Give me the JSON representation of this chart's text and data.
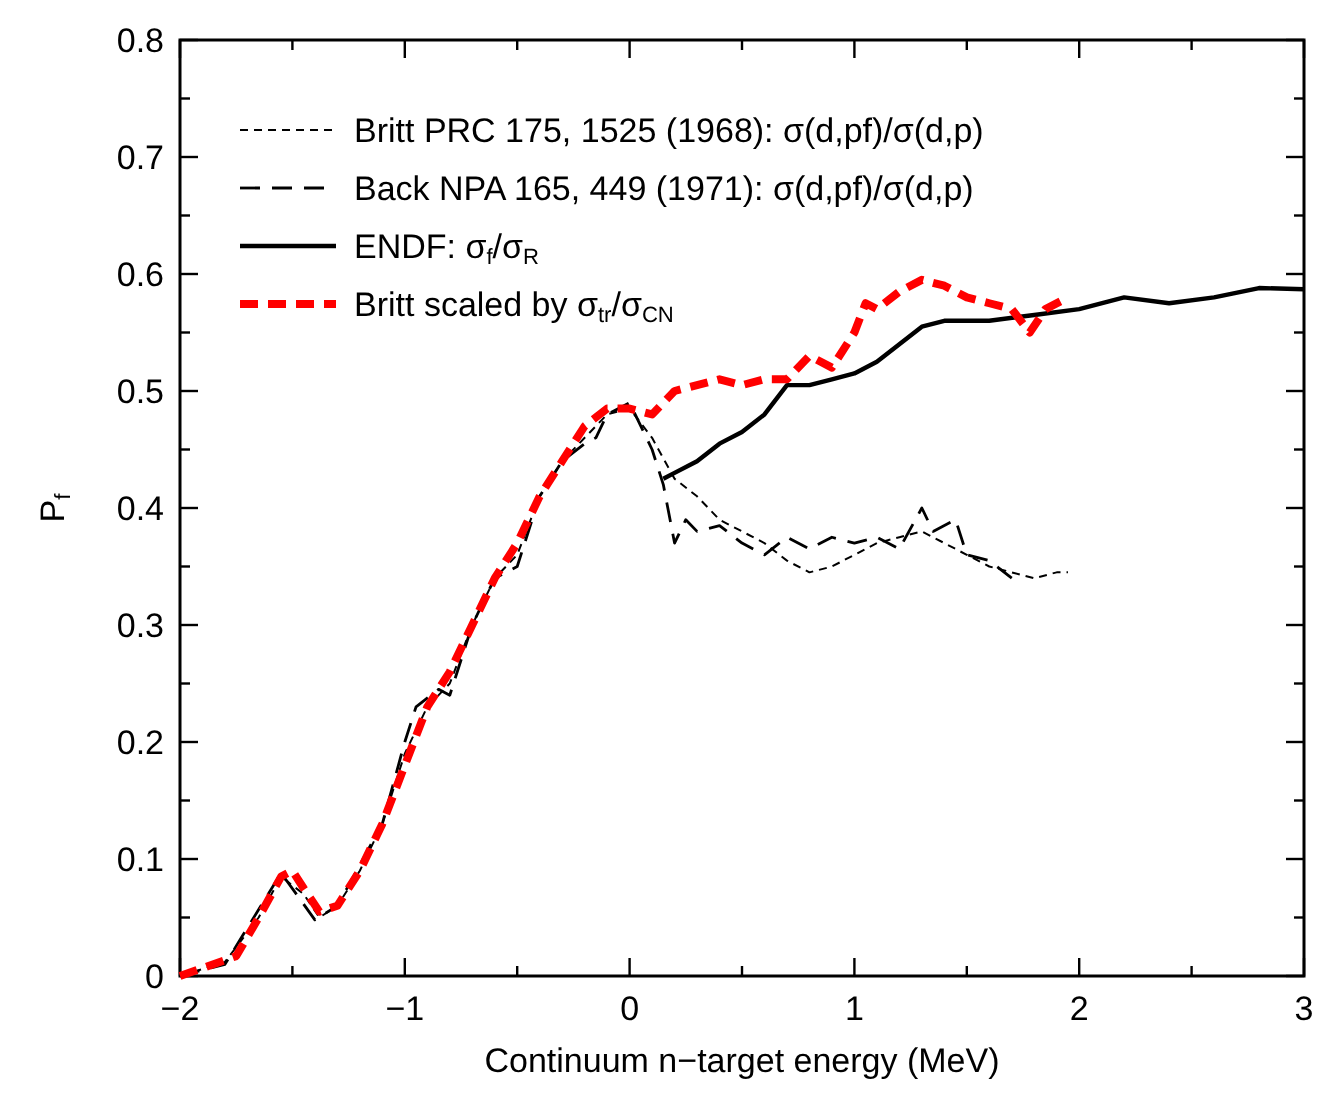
{
  "chart_data": {
    "type": "line",
    "xlabel": "Continuum n−target energy (MeV)",
    "ylabel": "P$_{f}$",
    "xlim": [
      -2,
      3
    ],
    "ylim": [
      0,
      0.8
    ],
    "xticks": [
      {
        "value": -2,
        "label": "−2"
      },
      {
        "value": -1.5,
        "label": null
      },
      {
        "value": -1,
        "label": "−1"
      },
      {
        "value": -0.5,
        "label": null
      },
      0,
      {
        "value": 0.5,
        "label": null
      },
      1,
      {
        "value": 1.5,
        "label": null
      },
      2,
      {
        "value": 2.5,
        "label": null
      },
      3
    ],
    "yticks": [
      0,
      {
        "value": 0.05,
        "label": null
      },
      0.1,
      {
        "value": 0.15,
        "label": null
      },
      0.2,
      {
        "value": 0.25,
        "label": null
      },
      0.3,
      {
        "value": 0.35,
        "label": null
      },
      0.4,
      {
        "value": 0.45,
        "label": null
      },
      0.5,
      {
        "value": 0.55,
        "label": null
      },
      0.6,
      {
        "value": 0.65,
        "label": null
      },
      0.7,
      {
        "value": 0.75,
        "label": null
      },
      0.8
    ],
    "legend": "top left",
    "grid": false,
    "marker": "none",
    "series": [
      {
        "name": "Britt PRC 175, 1525 (1968): σ(d,pf)/σ(d,p)",
        "color": "#000000",
        "line_style": "dotted",
        "x": [
          -2,
          -1.8,
          -1.65,
          -1.55,
          -1.45,
          -1.38,
          -1.3,
          -1.2,
          -1.1,
          -1.0,
          -0.9,
          -0.8,
          -0.7,
          -0.6,
          -0.5,
          -0.4,
          -0.3,
          -0.2,
          -0.1,
          0,
          0.1,
          0.2,
          0.3,
          0.4,
          0.5,
          0.6,
          0.7,
          0.8,
          0.9,
          1.0,
          1.1,
          1.2,
          1.3,
          1.4,
          1.5,
          1.6,
          1.7,
          1.8,
          1.9,
          1.95
        ],
        "values": [
          0,
          0.012,
          0.05,
          0.085,
          0.07,
          0.05,
          0.06,
          0.09,
          0.13,
          0.19,
          0.23,
          0.25,
          0.3,
          0.34,
          0.36,
          0.41,
          0.44,
          0.46,
          0.48,
          0.485,
          0.46,
          0.425,
          0.41,
          0.39,
          0.38,
          0.37,
          0.355,
          0.345,
          0.35,
          0.36,
          0.37,
          0.375,
          0.38,
          0.37,
          0.36,
          0.35,
          0.345,
          0.34,
          0.345,
          0.345
        ]
      },
      {
        "name": "Back  NPA 165, 449 (1971): σ(d,pf)/σ(d,p)",
        "color": "#000000",
        "line_style": "dashed",
        "x": [
          -2,
          -1.8,
          -1.55,
          -1.4,
          -1.3,
          -1.1,
          -1.0,
          -0.95,
          -0.85,
          -0.8,
          -0.7,
          -0.6,
          -0.5,
          -0.4,
          -0.3,
          -0.2,
          -0.15,
          -0.1,
          0,
          0.1,
          0.15,
          0.2,
          0.25,
          0.3,
          0.4,
          0.5,
          0.6,
          0.7,
          0.8,
          0.9,
          1.0,
          1.1,
          1.2,
          1.3,
          1.35,
          1.45,
          1.5,
          1.6,
          1.7
        ],
        "values": [
          0,
          0.01,
          0.088,
          0.048,
          0.06,
          0.13,
          0.2,
          0.23,
          0.245,
          0.24,
          0.3,
          0.34,
          0.35,
          0.41,
          0.44,
          0.455,
          0.46,
          0.48,
          0.49,
          0.45,
          0.42,
          0.37,
          0.39,
          0.38,
          0.385,
          0.37,
          0.36,
          0.375,
          0.365,
          0.375,
          0.37,
          0.375,
          0.365,
          0.4,
          0.38,
          0.39,
          0.36,
          0.355,
          0.34
        ]
      },
      {
        "name": "ENDF:  σ$_{f}$/σ$_{R}$",
        "color": "#000000",
        "line_style": "solid",
        "x": [
          0.15,
          0.2,
          0.3,
          0.4,
          0.5,
          0.6,
          0.7,
          0.8,
          0.9,
          1.0,
          1.1,
          1.2,
          1.3,
          1.4,
          1.6,
          1.8,
          2.0,
          2.2,
          2.4,
          2.6,
          2.8,
          3.0
        ],
        "values": [
          0.425,
          0.43,
          0.44,
          0.455,
          0.465,
          0.48,
          0.505,
          0.505,
          0.51,
          0.515,
          0.525,
          0.54,
          0.555,
          0.56,
          0.56,
          0.565,
          0.57,
          0.58,
          0.575,
          0.58,
          0.588,
          0.587
        ]
      },
      {
        "name": "Britt scaled by σ$_{tr}$/σ$_{CN}$",
        "color": "#ff0000",
        "line_style": "dashed",
        "x": [
          -2,
          -1.75,
          -1.65,
          -1.55,
          -1.5,
          -1.45,
          -1.38,
          -1.3,
          -1.2,
          -1.1,
          -1.0,
          -0.9,
          -0.8,
          -0.7,
          -0.6,
          -0.5,
          -0.4,
          -0.3,
          -0.2,
          -0.1,
          0,
          0.1,
          0.2,
          0.3,
          0.4,
          0.5,
          0.6,
          0.7,
          0.8,
          0.9,
          1.0,
          1.05,
          1.1,
          1.2,
          1.3,
          1.4,
          1.5,
          1.6,
          1.7,
          1.78,
          1.85,
          1.95
        ],
        "values": [
          0,
          0.017,
          0.05,
          0.085,
          0.09,
          0.075,
          0.055,
          0.06,
          0.09,
          0.13,
          0.18,
          0.23,
          0.26,
          0.3,
          0.34,
          0.37,
          0.41,
          0.44,
          0.47,
          0.485,
          0.485,
          0.48,
          0.5,
          0.505,
          0.51,
          0.505,
          0.51,
          0.51,
          0.53,
          0.52,
          0.55,
          0.575,
          0.57,
          0.585,
          0.595,
          0.59,
          0.58,
          0.575,
          0.57,
          0.55,
          0.57,
          0.58
        ]
      }
    ]
  }
}
